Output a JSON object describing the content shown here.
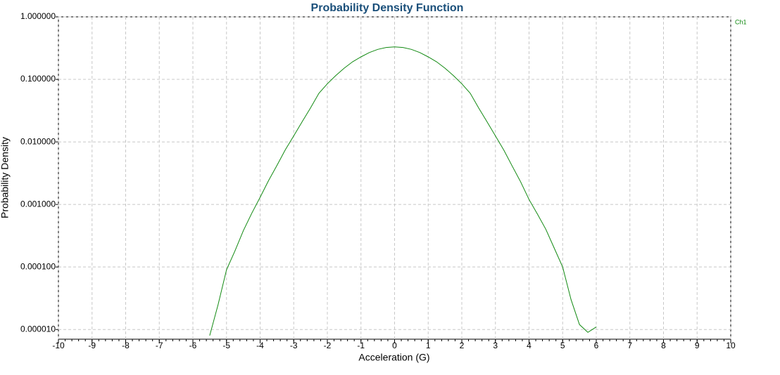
{
  "chart_data": {
    "type": "line",
    "title": "Probability Density Function",
    "x_label": "Acceleration (G)",
    "y_label": "Probability Density",
    "log_y": true,
    "grid": true,
    "legend": "top-right",
    "xlim": [
      -10,
      10
    ],
    "xticks": [
      -10,
      -9,
      -8,
      -7,
      -6,
      -5,
      -4,
      -3,
      -2,
      -1,
      0,
      1,
      2,
      3,
      4,
      5,
      6,
      7,
      8,
      9,
      10
    ],
    "ylim": [
      7e-06,
      1
    ],
    "yticks": [
      {
        "value": 1e-05,
        "label": "0.000010"
      },
      {
        "value": 0.0001,
        "label": "0.000100"
      },
      {
        "value": 0.001,
        "label": "0.001000"
      },
      {
        "value": 0.01,
        "label": "0.010000"
      },
      {
        "value": 0.1,
        "label": "0.100000"
      },
      {
        "value": 1,
        "label": "1.000000"
      }
    ],
    "x": [
      -5.5,
      -5.25,
      -5,
      -4.75,
      -4.5,
      -4.25,
      -4,
      -3.75,
      -3.5,
      -3.25,
      -3,
      -2.75,
      -2.5,
      -2.25,
      -2,
      -1.75,
      -1.5,
      -1.25,
      -1,
      -0.75,
      -0.5,
      -0.25,
      0,
      0.25,
      0.5,
      0.75,
      1,
      1.25,
      1.5,
      1.75,
      2,
      2.25,
      2.5,
      2.75,
      3,
      3.25,
      3.5,
      3.75,
      4,
      4.25,
      4.5,
      4.75,
      5,
      5.25,
      5.5,
      5.75,
      6
    ],
    "series": [
      {
        "name": "Ch1",
        "color": "#128a12",
        "values": [
          8e-06,
          2.5e-05,
          9e-05,
          0.00018,
          0.00038,
          0.00072,
          0.0013,
          0.0024,
          0.0042,
          0.0075,
          0.0125,
          0.021,
          0.035,
          0.06,
          0.085,
          0.115,
          0.151,
          0.191,
          0.229,
          0.269,
          0.302,
          0.324,
          0.331,
          0.324,
          0.302,
          0.269,
          0.229,
          0.191,
          0.151,
          0.115,
          0.085,
          0.06,
          0.035,
          0.021,
          0.0125,
          0.0074,
          0.0041,
          0.0023,
          0.0012,
          0.0007,
          0.0004,
          0.0002,
          0.0001,
          3e-05,
          1.2e-05,
          9e-06,
          1.1e-05
        ]
      }
    ]
  }
}
